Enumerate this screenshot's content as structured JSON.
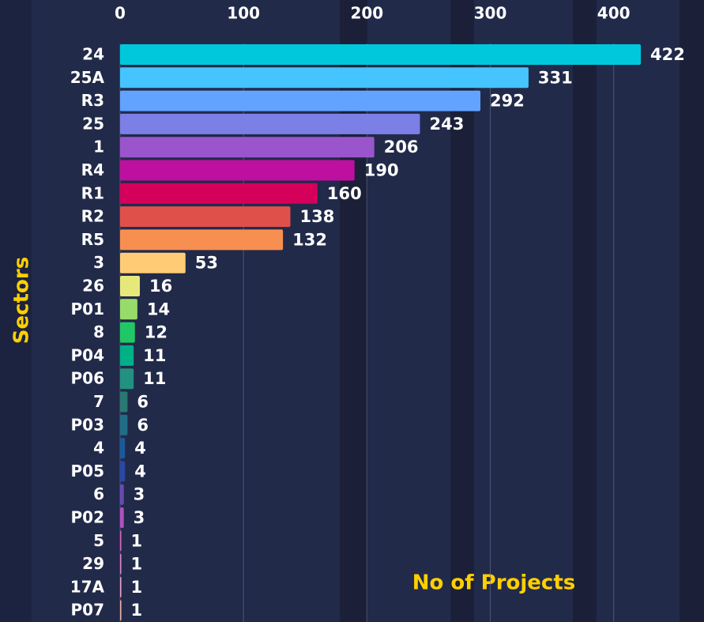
{
  "chart_data": {
    "type": "bar",
    "orientation": "horizontal",
    "x_label": "No of Projects",
    "y_label": "Sectors",
    "categories": [
      "24",
      "25A",
      "R3",
      "25",
      "1",
      "R4",
      "R1",
      "R2",
      "R5",
      "3",
      "26",
      "P01",
      "8",
      "P04",
      "P06",
      "7",
      "P03",
      "4",
      "P05",
      "6",
      "P02",
      "5",
      "29",
      "17A",
      "P07"
    ],
    "values": [
      422,
      331,
      292,
      243,
      206,
      190,
      160,
      138,
      132,
      53,
      16,
      14,
      12,
      11,
      11,
      6,
      6,
      4,
      4,
      3,
      3,
      1,
      1,
      1,
      1
    ],
    "colors": [
      "#00c8dc",
      "#45c4ff",
      "#62a3ff",
      "#7b7fe6",
      "#9a55cc",
      "#be10a0",
      "#d4005a",
      "#e0504a",
      "#f78f50",
      "#ffcc75",
      "#e6e87a",
      "#97dc6a",
      "#20c865",
      "#00b087",
      "#23917f",
      "#2a7874",
      "#1f6e85",
      "#1b5a98",
      "#2c47a5",
      "#6a4ab3",
      "#b050c0",
      "#d660c6",
      "#e07fcc",
      "#e8a0cc",
      "#eab0a0"
    ],
    "xlim": [
      0,
      470
    ],
    "xticks": [
      0,
      100,
      200,
      300,
      400
    ],
    "grid": true,
    "label_color": "#ffd000"
  }
}
